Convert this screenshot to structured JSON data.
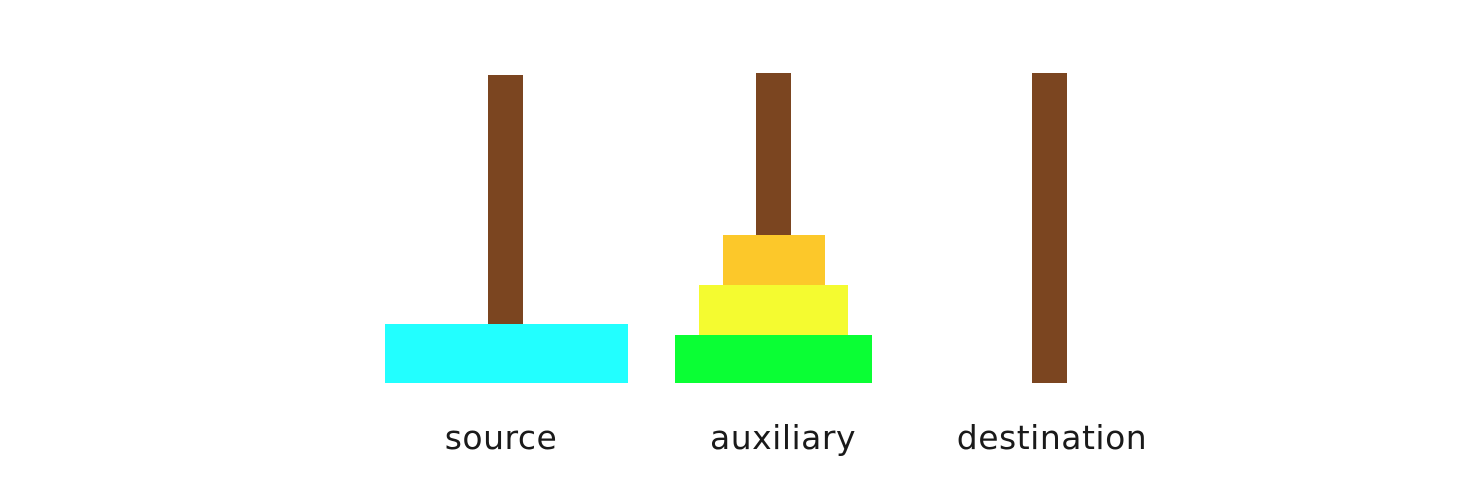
{
  "colors": {
    "peg": "#7b4520",
    "disk_cyan": "#22ffff",
    "disk_orange": "#fcc82a",
    "disk_yellow": "#f4fb30",
    "disk_green": "#0aff34",
    "label_text": "#1a1a1a",
    "background": "#ffffff"
  },
  "towers": [
    {
      "label": "source",
      "disks": [
        "cyan"
      ]
    },
    {
      "label": "auxiliary",
      "disks": [
        "green",
        "yellow",
        "orange"
      ]
    },
    {
      "label": "destination",
      "disks": []
    }
  ]
}
